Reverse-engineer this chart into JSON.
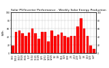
{
  "title": "Solar PV/Inverter Performance - Weekly Solar Energy Production",
  "ylabel": "kWh",
  "bar_color": "#ff0000",
  "bar_edge_color": "#cc0000",
  "background_color": "#ffffff",
  "plot_bg_color": "#ffffff",
  "grid_color": "#aaaaaa",
  "weeks": [
    "10/3",
    "10/10",
    "10/17",
    "10/24",
    "10/31",
    "11/7",
    "11/14",
    "11/21",
    "11/28",
    "12/5",
    "12/12",
    "12/19",
    "12/26",
    "1/2",
    "1/9",
    "1/16",
    "1/23",
    "1/30",
    "2/6",
    "2/13",
    "2/20",
    "2/27",
    "3/6",
    "3/13",
    "3/20",
    "3/27"
  ],
  "values": [
    18,
    52,
    55,
    48,
    42,
    50,
    60,
    48,
    35,
    52,
    52,
    28,
    55,
    42,
    45,
    50,
    42,
    38,
    42,
    42,
    65,
    85,
    60,
    42,
    18,
    10
  ],
  "ylim": [
    0,
    100
  ],
  "yticks": [
    0,
    20,
    40,
    60,
    80,
    100
  ],
  "title_fontsize": 3.2,
  "tick_fontsize": 2.2,
  "ylabel_fontsize": 2.8
}
